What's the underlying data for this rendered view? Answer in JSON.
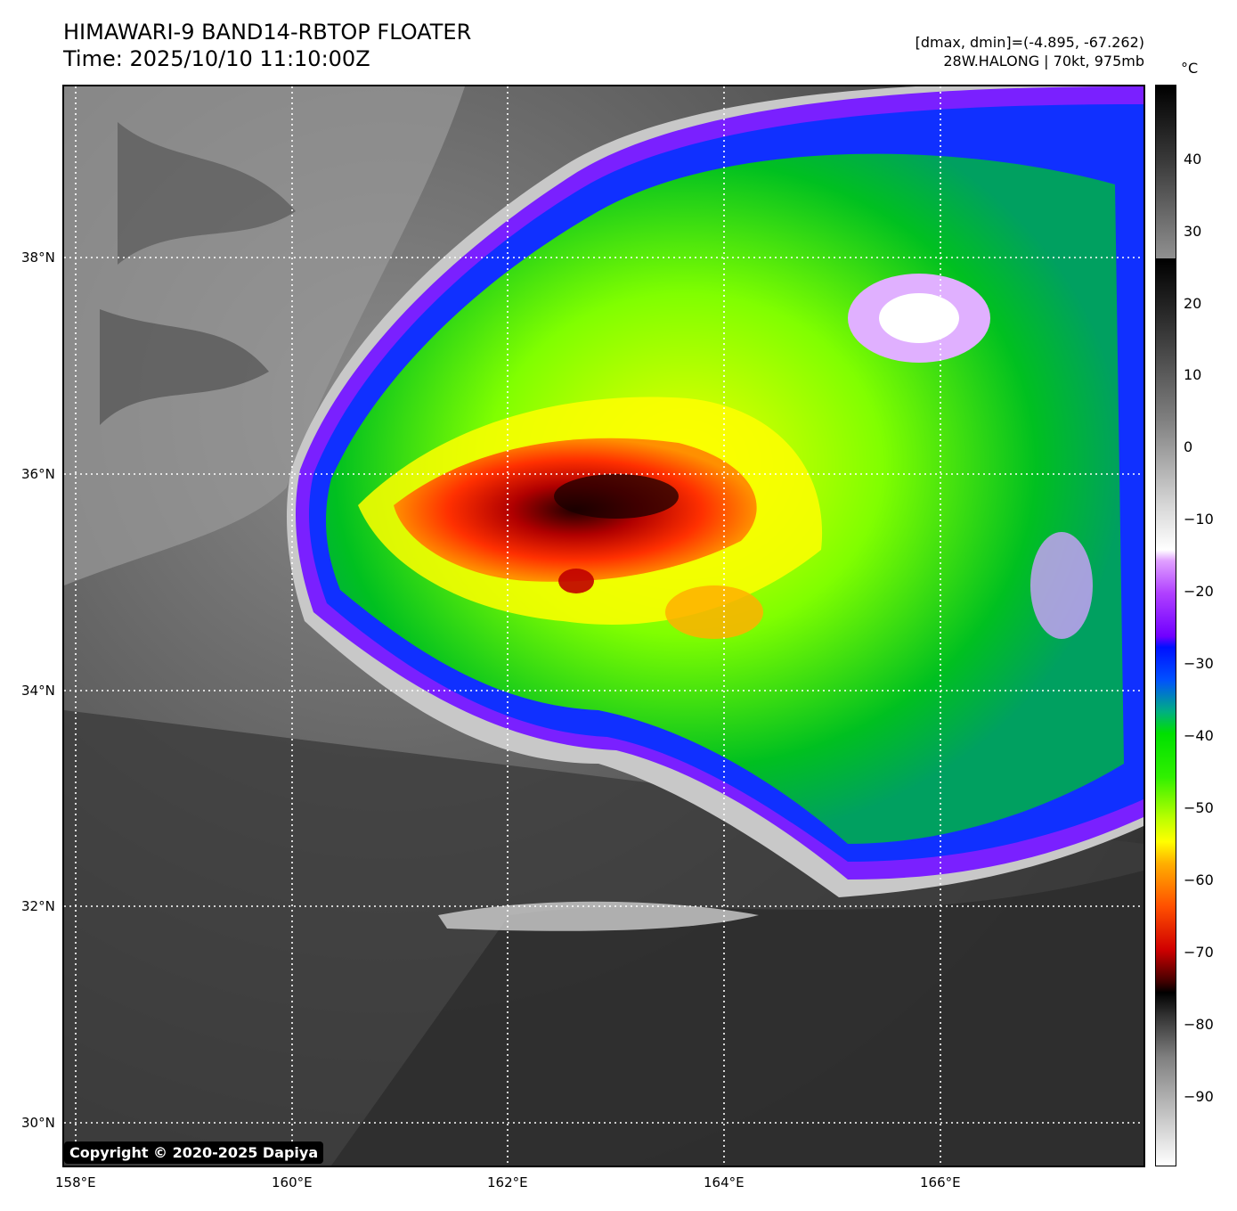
{
  "title_line1": "HIMAWARI-9 BAND14-RBTOP FLOATER",
  "title_line2": "Time: 2025/10/10 11:10:00Z",
  "stats_line": "[dmax, dmin]=(-4.895, -67.262)",
  "storm_line": "28W.HALONG | 70kt, 975mb",
  "colorbar_unit": "°C",
  "copyright": "Copyright © 2020-2025 Dapiya",
  "lat_labels": [
    "38°N",
    "36°N",
    "34°N",
    "32°N",
    "30°N"
  ],
  "lon_labels": [
    "158°E",
    "160°E",
    "162°E",
    "164°E",
    "166°E"
  ],
  "colorbar_ticks": [
    "40",
    "30",
    "20",
    "10",
    "0",
    "−10",
    "−20",
    "−30",
    "−40",
    "−50",
    "−60",
    "−70",
    "−80",
    "−90"
  ],
  "colors": {
    "cold_top": "#000000",
    "deep_convection": "#d00000",
    "mid_cloud": "#00e000",
    "anvil_edge": "#0010ff",
    "cirrus": "#b040ff"
  }
}
